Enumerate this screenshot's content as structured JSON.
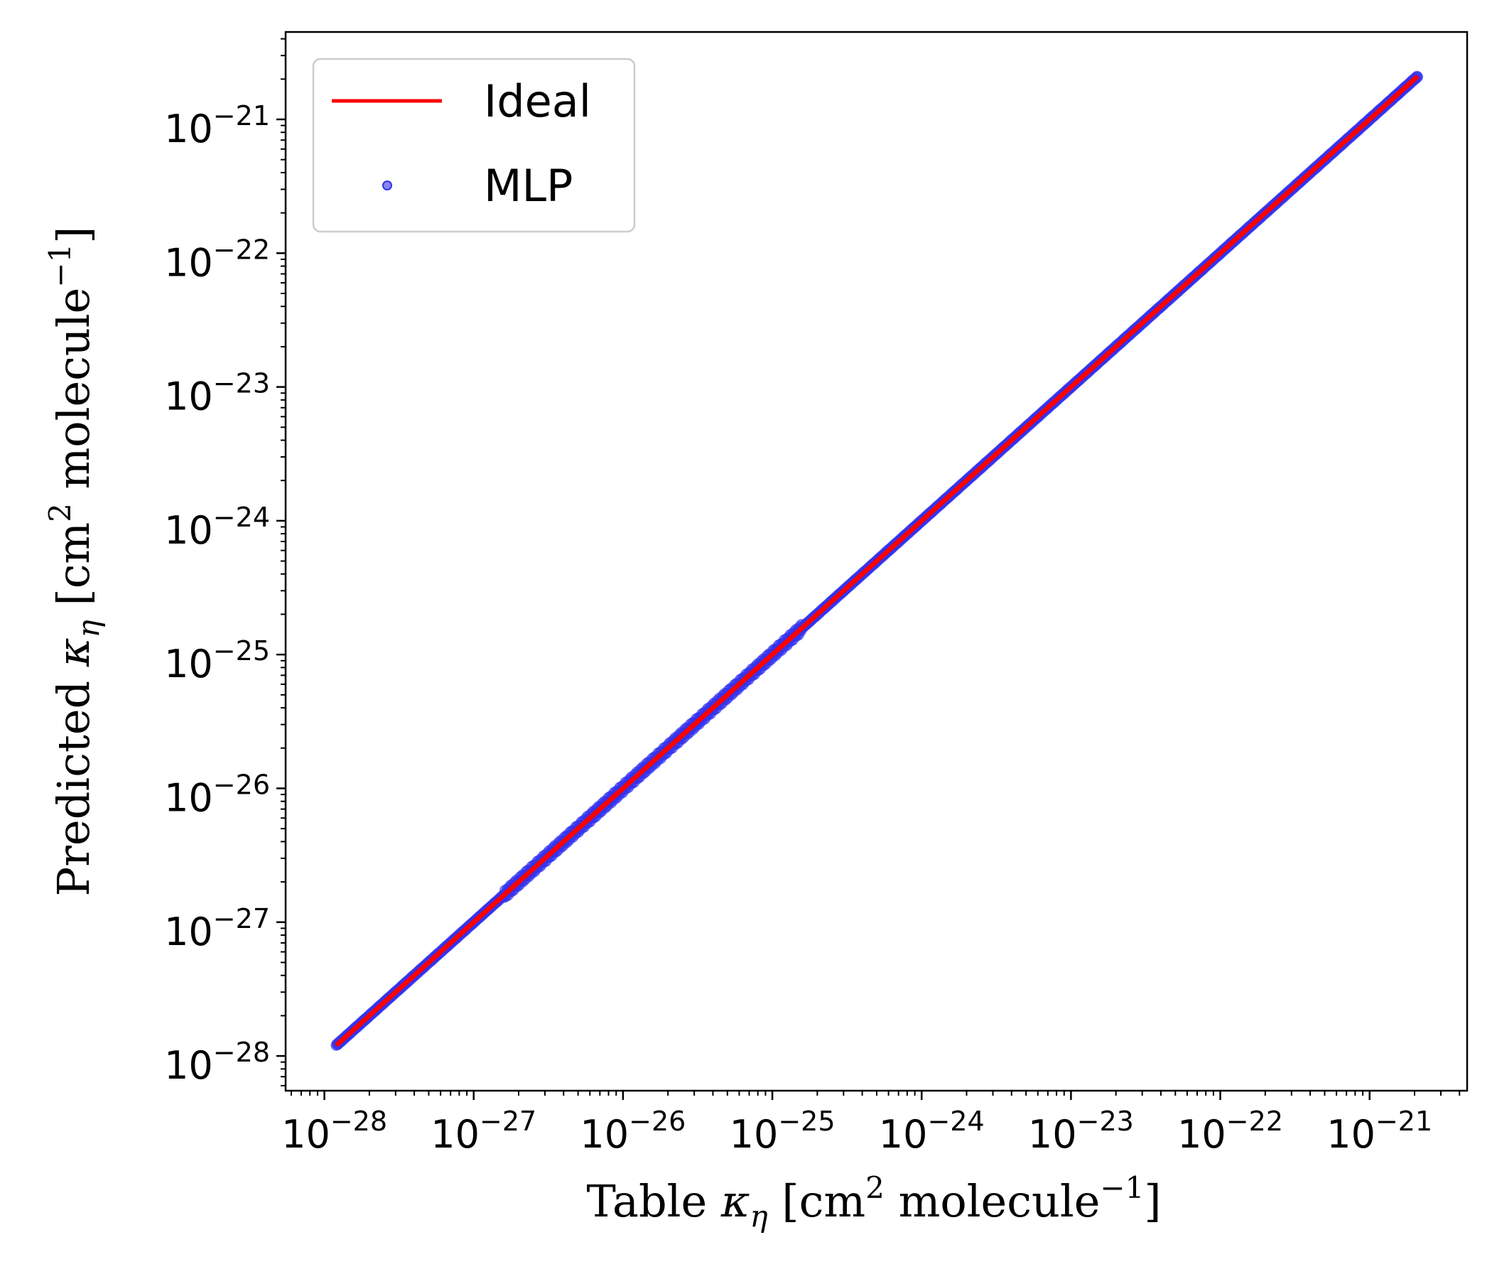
{
  "chart_data": {
    "type": "scatter",
    "xscale": "log",
    "yscale": "log",
    "xlim": [
      5.5e-29,
      4.5e-21
    ],
    "ylim": [
      5.5e-29,
      4.5e-21
    ],
    "xticks": [
      1e-28,
      1e-27,
      1e-26,
      1e-25,
      1e-24,
      1e-23,
      1e-22,
      1e-21
    ],
    "xtick_labels": [
      {
        "base": "10",
        "exp": "−28"
      },
      {
        "base": "10",
        "exp": "−27"
      },
      {
        "base": "10",
        "exp": "−26"
      },
      {
        "base": "10",
        "exp": "−25"
      },
      {
        "base": "10",
        "exp": "−24"
      },
      {
        "base": "10",
        "exp": "−23"
      },
      {
        "base": "10",
        "exp": "−22"
      },
      {
        "base": "10",
        "exp": "−21"
      }
    ],
    "yticks": [
      1e-28,
      1e-27,
      1e-26,
      1e-25,
      1e-24,
      1e-23,
      1e-22,
      1e-21
    ],
    "ytick_labels": [
      {
        "base": "10",
        "exp": "−28"
      },
      {
        "base": "10",
        "exp": "−27"
      },
      {
        "base": "10",
        "exp": "−26"
      },
      {
        "base": "10",
        "exp": "−25"
      },
      {
        "base": "10",
        "exp": "−24"
      },
      {
        "base": "10",
        "exp": "−23"
      },
      {
        "base": "10",
        "exp": "−22"
      },
      {
        "base": "10",
        "exp": "−21"
      }
    ],
    "xlabel": {
      "pre": "Table ",
      "kappa": "κ",
      "sub": "η",
      "mid": " [cm",
      "sup1": "2",
      "post": " molecule",
      "sup2": "−1",
      "end": "]"
    },
    "ylabel": {
      "pre": "Predicted ",
      "kappa": "κ",
      "sub": "η",
      "mid": " [cm",
      "sup1": "2",
      "post": " molecule",
      "sup2": "−1",
      "end": "]"
    },
    "grid": false,
    "legend_position": "top-left",
    "series": [
      {
        "name": "Ideal",
        "kind": "line",
        "color": "#ff0000",
        "x": [
          1.2e-28,
          2.1e-21
        ],
        "y": [
          1.2e-28,
          2.1e-21
        ]
      },
      {
        "name": "MLP",
        "kind": "scatter",
        "color": "#3333ee",
        "x_range": [
          1.2e-28,
          2.1e-21
        ]
      }
    ]
  }
}
